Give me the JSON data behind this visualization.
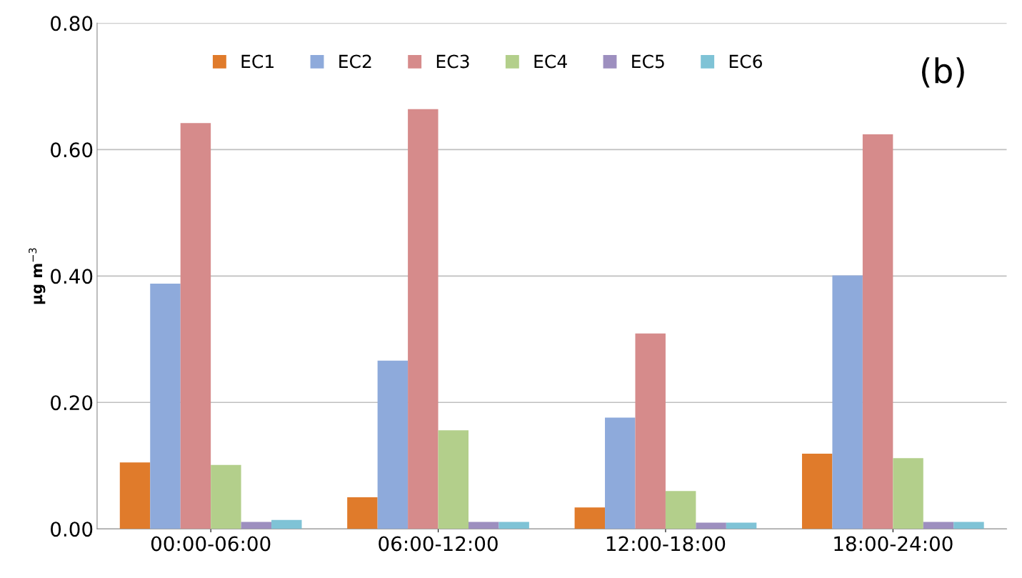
{
  "chart_data": {
    "type": "bar",
    "ylabel": "µg m$^{−3}$",
    "annotations": [
      "(b)"
    ],
    "categories": [
      "00:00-06:00",
      "06:00-12:00",
      "12:00-18:00",
      "18:00-24:00"
    ],
    "series": [
      {
        "name": "EC1",
        "color": "#e07b2b",
        "values": [
          0.105,
          0.05,
          0.034,
          0.119
        ]
      },
      {
        "name": "EC2",
        "color": "#8eaadb",
        "values": [
          0.388,
          0.266,
          0.176,
          0.401
        ]
      },
      {
        "name": "EC3",
        "color": "#d68b8b",
        "values": [
          0.642,
          0.664,
          0.309,
          0.624
        ]
      },
      {
        "name": "EC4",
        "color": "#b3cf8b",
        "values": [
          0.101,
          0.156,
          0.06,
          0.112
        ]
      },
      {
        "name": "EC5",
        "color": "#9d8fbf",
        "values": [
          0.011,
          0.011,
          0.01,
          0.011
        ]
      },
      {
        "name": "EC6",
        "color": "#7fc3d6",
        "values": [
          0.014,
          0.011,
          0.01,
          0.011
        ]
      }
    ],
    "ylim": [
      0,
      0.8
    ],
    "yticks": [
      {
        "value": 0,
        "label": "0.00"
      },
      {
        "value": 0.2,
        "label": "0.20"
      },
      {
        "value": 0.4,
        "label": "0.40"
      },
      {
        "value": 0.6,
        "label": "0.60"
      },
      {
        "value": 0.8,
        "label": "0.80"
      }
    ],
    "grid": "y",
    "legend": "top"
  }
}
